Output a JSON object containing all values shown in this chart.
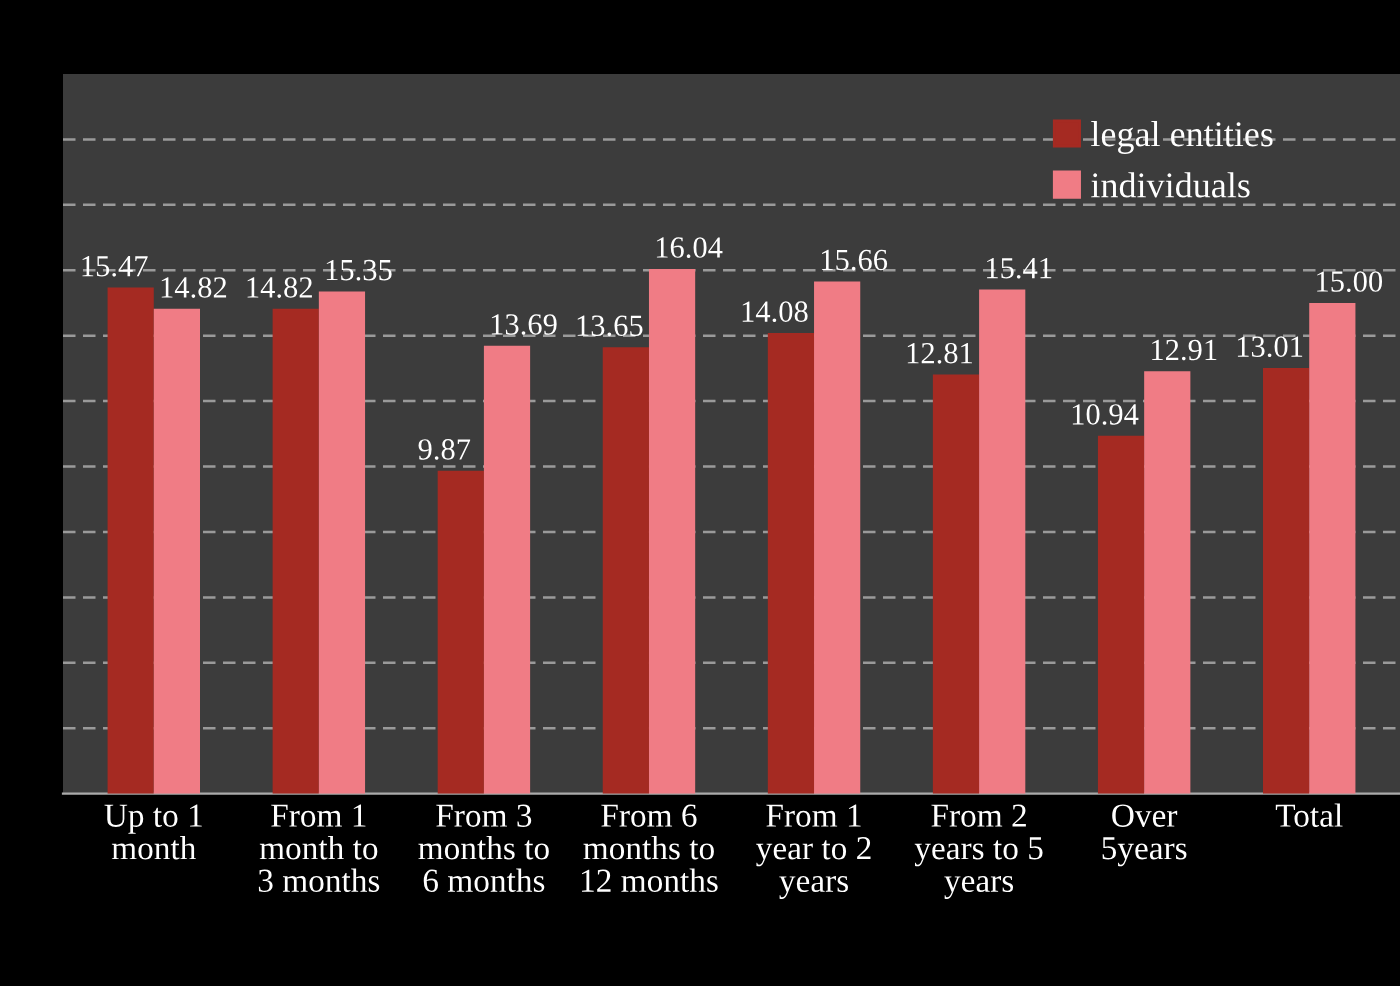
{
  "chart_data": {
    "type": "bar",
    "categories": [
      "Up to 1\nmonth",
      "From 1\nmonth to\n3 months",
      "From 3\nmonths to\n6 months",
      "From 6\nmonths to\n12 months",
      "From 1\nyear to 2\nyears",
      "From 2\nyears to 5\nyears",
      "Over\n5years",
      "Total"
    ],
    "series": [
      {
        "name": "legal entities",
        "color": "#a52a22",
        "values": [
          15.47,
          14.82,
          9.87,
          13.65,
          14.08,
          12.81,
          10.94,
          13.01
        ],
        "value_labels": [
          "15.47",
          "14.82",
          "9.87",
          "13.65",
          "14.08",
          "12.81",
          "10.94",
          "13.01"
        ]
      },
      {
        "name": "individuals",
        "color": "#f07c85",
        "values": [
          14.82,
          15.35,
          13.69,
          16.04,
          15.66,
          15.41,
          12.91,
          15.0
        ],
        "value_labels": [
          "14.82",
          "15.35",
          "13.69",
          "16.04",
          "15.66",
          "15.41",
          "12.91",
          "15.00"
        ]
      }
    ],
    "ylim": [
      0,
      22
    ],
    "yticks": [
      {
        "value": 2,
        "label": null
      },
      {
        "value": 4,
        "label": null
      },
      {
        "value": 6,
        "label": null
      },
      {
        "value": 8,
        "label": null
      },
      {
        "value": 10,
        "label": null
      },
      {
        "value": 12,
        "label": null
      },
      {
        "value": 14,
        "label": null
      },
      {
        "value": 16,
        "label": null
      },
      {
        "value": 18,
        "label": null
      },
      {
        "value": 20,
        "label": null
      }
    ],
    "tick_labels": "x",
    "grid": "y",
    "legend": "top right"
  }
}
